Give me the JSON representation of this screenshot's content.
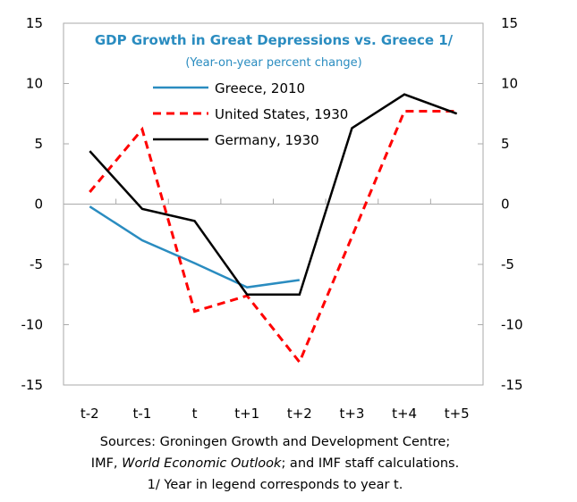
{
  "chart_data": {
    "type": "line",
    "title": "GDP Growth in Great Depressions vs. Greece 1/",
    "subtitle": "(Year-on-year percent change)",
    "categories": [
      "t-2",
      "t-1",
      "t",
      "t+1",
      "t+2",
      "t+3",
      "t+4",
      "t+5"
    ],
    "ylim": [
      -15,
      15
    ],
    "yticks": [
      15,
      10,
      5,
      0,
      -5,
      -10,
      -15
    ],
    "secondary_yticks": [
      15,
      10,
      5,
      0,
      -5,
      -10,
      -15
    ],
    "grid": false,
    "legend_placement": "top",
    "series": [
      {
        "name": "Greece, 2010",
        "color": "#2a8cc0",
        "style": "solid",
        "values": [
          -0.2,
          -3.0,
          -4.9,
          -6.9,
          -6.3,
          null,
          null,
          null
        ]
      },
      {
        "name": "United States, 1930",
        "color": "#ff0000",
        "style": "dashed",
        "values": [
          1.0,
          6.2,
          -8.9,
          -7.6,
          -13.1,
          -2.7,
          7.7,
          7.7
        ]
      },
      {
        "name": "Germany, 1930",
        "color": "#000000",
        "style": "solid",
        "values": [
          4.4,
          -0.4,
          -1.4,
          -7.5,
          -7.5,
          6.3,
          9.1,
          7.5
        ]
      }
    ]
  },
  "notes": {
    "line1": "Sources: Groningen Growth and Development Centre;",
    "line2_a": "IMF, ",
    "line2_b": "World Economic Outlook",
    "line2_c": "; and IMF staff calculations.",
    "line3": "1/ Year in legend corresponds to year t."
  }
}
